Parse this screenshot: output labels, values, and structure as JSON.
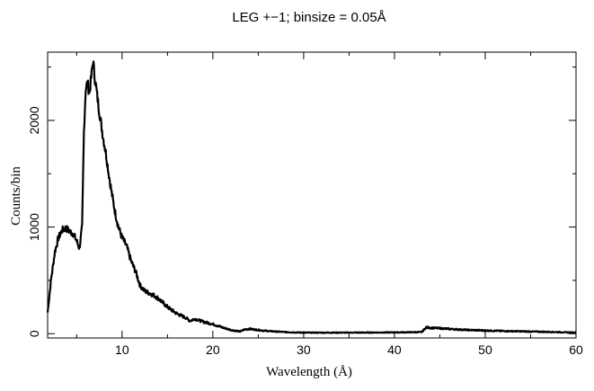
{
  "chart_data": {
    "type": "line",
    "title": "LEG +−1; binsize = 0.05Å",
    "xlabel": "Wavelength (Å)",
    "ylabel": "Counts/bin",
    "xlim": [
      1.8,
      60
    ],
    "ylim": [
      -40,
      2640
    ],
    "x_ticks": [
      10,
      20,
      30,
      40,
      50,
      60
    ],
    "y_ticks": [
      0,
      1000,
      2000
    ],
    "grid": false,
    "series": [
      {
        "x": [
          1.8,
          2.2,
          2.6,
          3.0,
          3.4,
          3.8,
          4.2,
          4.6,
          5.0,
          5.3,
          5.6,
          5.8,
          6.0,
          6.2,
          6.4,
          6.6,
          6.8,
          7.0,
          7.3,
          7.6,
          7.9,
          8.2,
          8.5,
          8.8,
          9.2,
          9.6,
          10.0,
          10.5,
          11.0,
          11.5,
          12.0,
          12.5,
          13.0,
          13.5,
          14.0,
          15.0,
          16.0,
          17.0,
          17.5,
          18.0,
          19.0,
          20.0,
          21.0,
          22.0,
          23.0,
          23.5,
          24.0,
          25.0,
          26.0,
          27.0,
          28.0,
          30.0,
          35.0,
          40.0,
          43.0,
          43.5,
          44.0,
          46.0,
          48.0,
          50.0,
          52.0,
          55.0,
          58.0,
          60.0
        ],
        "y": [
          200,
          520,
          770,
          900,
          970,
          990,
          960,
          940,
          870,
          800,
          1000,
          1900,
          2300,
          2350,
          2250,
          2400,
          2560,
          2400,
          2200,
          2020,
          1850,
          1700,
          1520,
          1350,
          1150,
          1000,
          900,
          820,
          680,
          580,
          450,
          400,
          380,
          360,
          330,
          250,
          190,
          150,
          120,
          140,
          110,
          90,
          60,
          35,
          20,
          40,
          45,
          35,
          25,
          20,
          15,
          10,
          10,
          12,
          15,
          60,
          55,
          45,
          35,
          30,
          25,
          20,
          15,
          10
        ]
      }
    ]
  }
}
